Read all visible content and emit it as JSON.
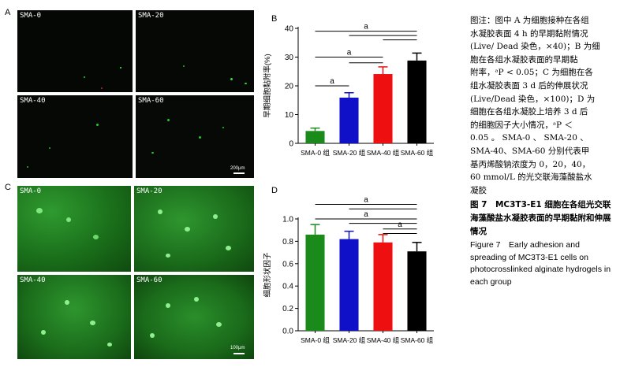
{
  "panels": {
    "A": {
      "letter": "A",
      "images": [
        {
          "label": "SMA-0",
          "tone": "dark"
        },
        {
          "label": "SMA-20",
          "tone": "dark"
        },
        {
          "label": "SMA-40",
          "tone": "dark"
        },
        {
          "label": "SMA-60",
          "tone": "dark"
        }
      ],
      "scale_text": "200μm"
    },
    "C": {
      "letter": "C",
      "images": [
        {
          "label": "SMA-0",
          "tone": "green"
        },
        {
          "label": "SMA-20",
          "tone": "green"
        },
        {
          "label": "SMA-40",
          "tone": "green"
        },
        {
          "label": "SMA-60",
          "tone": "green"
        }
      ],
      "scale_text": "100μm"
    }
  },
  "chart_data": [
    {
      "panel": "B",
      "type": "bar",
      "ylabel": "早期细胞黏附率(%)",
      "ylim": [
        0,
        40
      ],
      "yticks": [
        0,
        10,
        20,
        30,
        40
      ],
      "categories": [
        "SMA-0 组",
        "SMA-20 组",
        "SMA-40 组",
        "SMA-60 组"
      ],
      "values": [
        4.3,
        15.9,
        24.1,
        28.8
      ],
      "errors": [
        1.0,
        1.7,
        2.5,
        2.6
      ],
      "colors": [
        "#1a8a1a",
        "#1010c8",
        "#ee1010",
        "#000000"
      ],
      "significance": [
        {
          "label": "a",
          "from": 0,
          "to": 1,
          "level": 20
        },
        {
          "label": "a",
          "from": 0,
          "to": 2,
          "level": 30
        },
        {
          "label": "",
          "from": 1,
          "to": 2,
          "level": 28
        },
        {
          "label": "a",
          "from": 0,
          "to": 3,
          "level": 39
        },
        {
          "label": "",
          "from": 1,
          "to": 3,
          "level": 37.5
        },
        {
          "label": "",
          "from": 2,
          "to": 3,
          "level": 36
        }
      ],
      "grid": false
    },
    {
      "panel": "D",
      "type": "bar",
      "ylabel": "细胞形状因子",
      "ylim": [
        0,
        1.0
      ],
      "yticks": [
        0.0,
        0.2,
        0.4,
        0.6,
        0.8,
        1.0
      ],
      "categories": [
        "SMA-0 组",
        "SMA-20 组",
        "SMA-40 组",
        "SMA-60 组"
      ],
      "values": [
        0.86,
        0.82,
        0.79,
        0.71
      ],
      "errors": [
        0.09,
        0.07,
        0.07,
        0.08
      ],
      "colors": [
        "#1a8a1a",
        "#1010c8",
        "#ee1010",
        "#000000"
      ],
      "significance": [
        {
          "label": "a",
          "from": 0,
          "to": 3,
          "level": 1.13
        },
        {
          "label": "",
          "from": 1,
          "to": 3,
          "level": 1.09
        },
        {
          "label": "a",
          "from": 0,
          "to": 3,
          "level": 1.0
        },
        {
          "label": "a",
          "from": 2,
          "to": 3,
          "level": 0.91
        },
        {
          "label": "",
          "from": 1,
          "to": 3,
          "level": 0.96
        },
        {
          "label": "",
          "from": 2,
          "to": 3,
          "level": 0.87
        }
      ],
      "grid": false
    }
  ],
  "caption": {
    "lines": [
      "图注：图中 A 为细胞接种在各组",
      "水凝胶表面 4 h 的早期黏附情况",
      "(Live/ Dead 染色，×40)；B 为细",
      "胞在各组水凝胶表面的早期黏",
      "附率，ᵃP < 0.05；C 为细胞在各",
      "组水凝胶表面 3 d 后的伸展状况",
      "(Live/Dead 染色，×100)；D 为",
      "细胞在各组水凝胶上培养 3 d 后",
      "的细胞因子大小情况，ᵃP ＜",
      "0.05 。 SMA-0 、 SMA-20 、",
      "SMA-40、SMA-60 分别代表甲",
      "基丙烯酸钠浓度为 0，20，40，",
      "60 mmol/L 的光交联海藻酸盐水",
      "凝胶"
    ],
    "figure_cn": "图 7　MC3T3-E1 细胞在各组光交联海藻酸盐水凝胶表面的早期黏附和伸展情况",
    "figure_en": "Figure 7　Early adhesion and spreading of MC3T3-E1 cells on photocrosslinked alginate hydrogels in each group"
  }
}
